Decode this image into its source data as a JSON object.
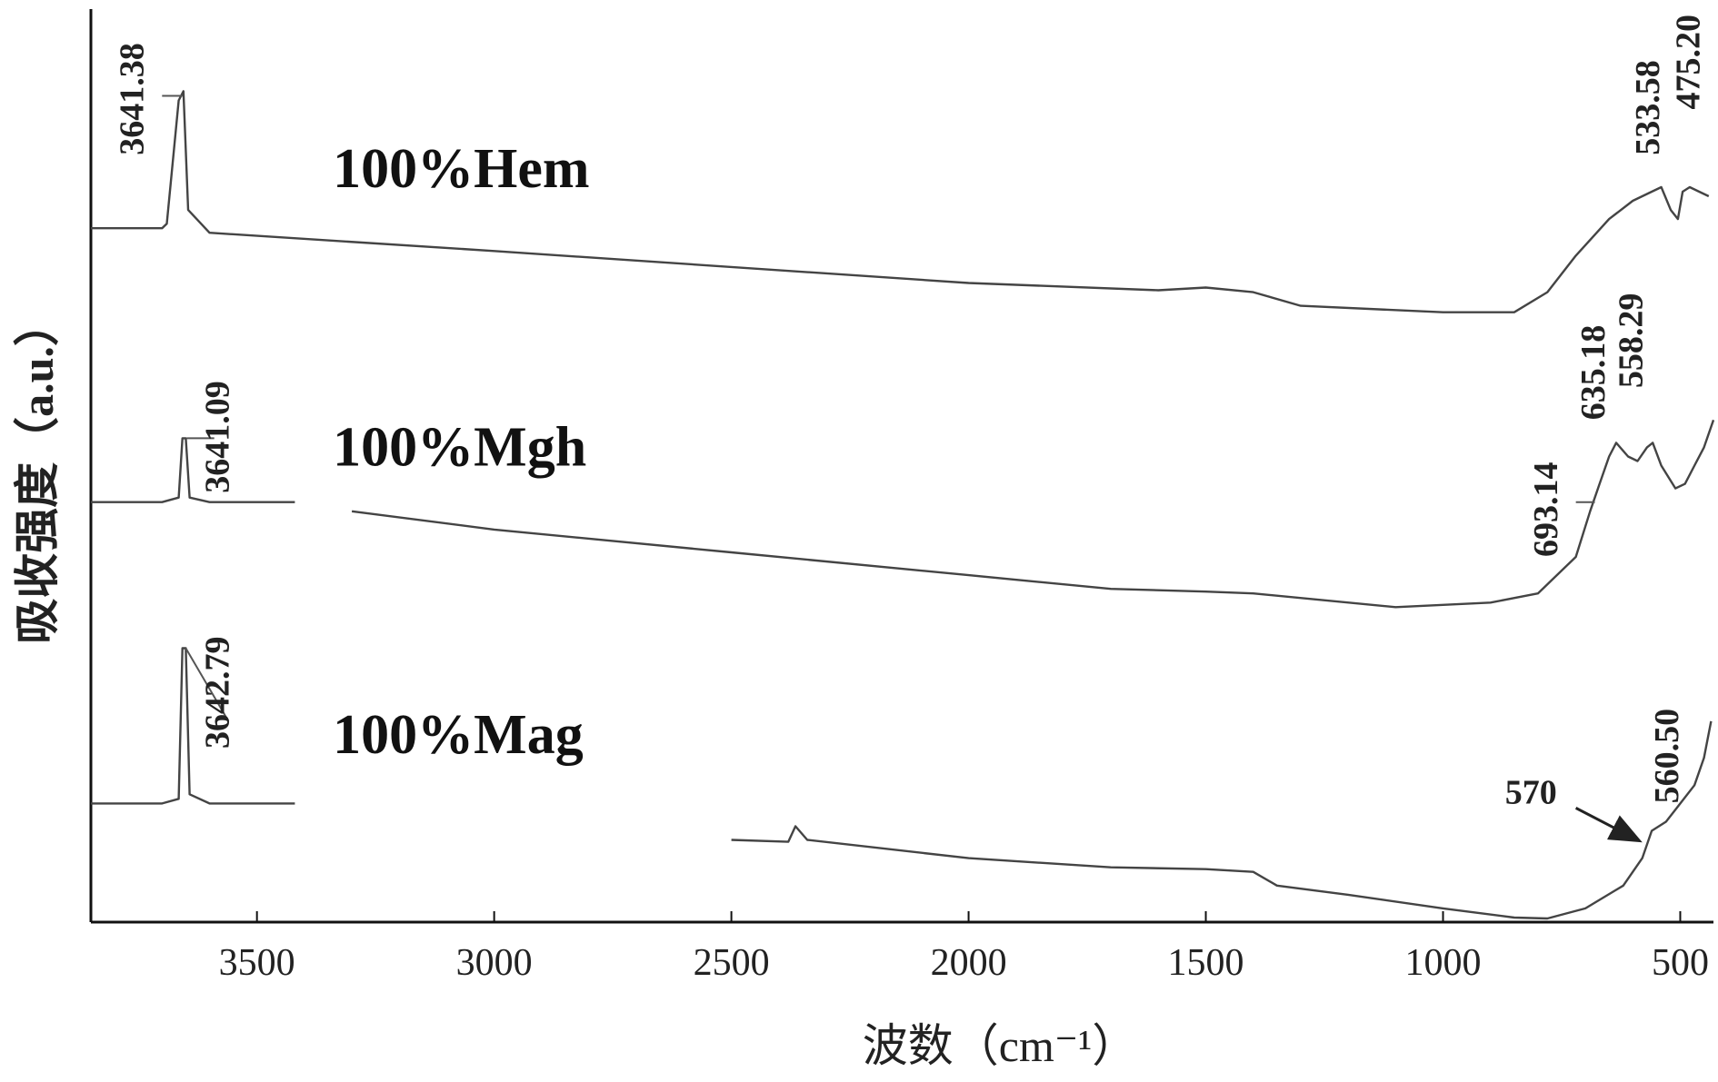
{
  "chart_data": {
    "type": "line",
    "xlabel": "波数（cm⁻¹）",
    "ylabel": "吸收强度（a.u.）",
    "xlim": [
      3850,
      430
    ],
    "x_reversed": true,
    "x_ticks": [
      3500,
      3000,
      2500,
      2000,
      1500,
      1000,
      500
    ],
    "y_ticks_shown": false,
    "legend": "none",
    "series": [
      {
        "name": "100%Hem",
        "color": "#444444",
        "points": [
          [
            3850,
            0.76
          ],
          [
            3700,
            0.76
          ],
          [
            3690,
            0.765
          ],
          [
            3665,
            0.9
          ],
          [
            3655,
            0.91
          ],
          [
            3645,
            0.78
          ],
          [
            3600,
            0.755
          ],
          [
            3000,
            0.735
          ],
          [
            2000,
            0.7
          ],
          [
            1600,
            0.692
          ],
          [
            1500,
            0.695
          ],
          [
            1400,
            0.69
          ],
          [
            1300,
            0.675
          ],
          [
            1000,
            0.668
          ],
          [
            850,
            0.668
          ],
          [
            780,
            0.69
          ],
          [
            720,
            0.73
          ],
          [
            650,
            0.77
          ],
          [
            600,
            0.79
          ],
          [
            560,
            0.8
          ],
          [
            540,
            0.805
          ],
          [
            520,
            0.78
          ],
          [
            505,
            0.77
          ],
          [
            495,
            0.8
          ],
          [
            480,
            0.805
          ],
          [
            460,
            0.8
          ],
          [
            440,
            0.795
          ]
        ],
        "annotations": [
          {
            "text": "3641.38",
            "x": 3641.38
          },
          {
            "text": "533.58",
            "x": 533.58
          },
          {
            "text": "475.20",
            "x": 475.2
          }
        ]
      },
      {
        "name": "100%Mgh",
        "color": "#444444",
        "segments": [
          [
            [
              3850,
              0.46
            ],
            [
              3700,
              0.46
            ],
            [
              3665,
              0.465
            ],
            [
              3657,
              0.53
            ],
            [
              3650,
              0.53
            ],
            [
              3642,
              0.465
            ],
            [
              3600,
              0.46
            ],
            [
              3420,
              0.46
            ]
          ],
          [
            [
              3300,
              0.45
            ],
            [
              3000,
              0.43
            ],
            [
              2500,
              0.405
            ],
            [
              2000,
              0.38
            ],
            [
              1700,
              0.365
            ],
            [
              1500,
              0.362
            ],
            [
              1400,
              0.36
            ],
            [
              1100,
              0.345
            ],
            [
              900,
              0.35
            ],
            [
              800,
              0.36
            ],
            [
              720,
              0.4
            ],
            [
              690,
              0.45
            ],
            [
              670,
              0.48
            ],
            [
              650,
              0.51
            ],
            [
              635,
              0.525
            ],
            [
              610,
              0.51
            ],
            [
              590,
              0.505
            ],
            [
              570,
              0.52
            ],
            [
              558,
              0.525
            ],
            [
              540,
              0.5
            ],
            [
              510,
              0.475
            ],
            [
              490,
              0.48
            ],
            [
              470,
              0.5
            ],
            [
              450,
              0.52
            ],
            [
              430,
              0.55
            ]
          ]
        ],
        "annotations": [
          {
            "text": "3641.09",
            "x": 3641.09
          },
          {
            "text": "693.14",
            "x": 693.14
          },
          {
            "text": "635.18",
            "x": 635.18
          },
          {
            "text": "558.29",
            "x": 558.29
          }
        ]
      },
      {
        "name": "100%Mag",
        "color": "#444444",
        "segments": [
          [
            [
              3850,
              0.13
            ],
            [
              3700,
              0.13
            ],
            [
              3665,
              0.135
            ],
            [
              3657,
              0.3
            ],
            [
              3650,
              0.3
            ],
            [
              3642,
              0.14
            ],
            [
              3600,
              0.13
            ],
            [
              3420,
              0.13
            ]
          ],
          [
            [
              2500,
              0.09
            ],
            [
              2380,
              0.088
            ],
            [
              2365,
              0.105
            ],
            [
              2340,
              0.09
            ],
            [
              2000,
              0.07
            ],
            [
              1700,
              0.06
            ],
            [
              1500,
              0.058
            ],
            [
              1400,
              0.055
            ],
            [
              1350,
              0.04
            ],
            [
              1200,
              0.03
            ],
            [
              1000,
              0.015
            ],
            [
              850,
              0.005
            ],
            [
              780,
              0.004
            ],
            [
              700,
              0.015
            ],
            [
              620,
              0.04
            ],
            [
              580,
              0.07
            ],
            [
              560,
              0.1
            ],
            [
              530,
              0.11
            ],
            [
              500,
              0.13
            ],
            [
              470,
              0.15
            ],
            [
              450,
              0.18
            ],
            [
              435,
              0.22
            ]
          ]
        ],
        "annotations": [
          {
            "text": "3642.79",
            "x": 3642.79
          },
          {
            "text": "570",
            "x": 570
          },
          {
            "text": "560.50",
            "x": 560.5
          }
        ]
      }
    ]
  }
}
